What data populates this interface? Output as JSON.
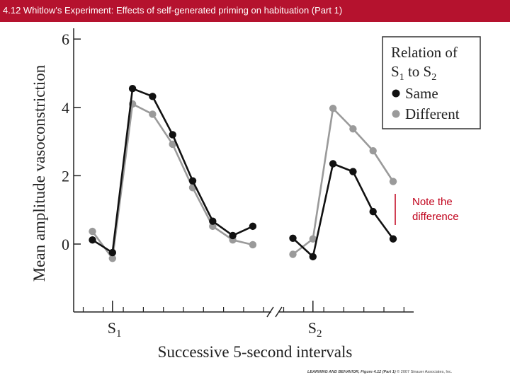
{
  "page": {
    "title": "4.12 Whitlow's Experiment: Effects of self-generated priming on habituation (Part 1)",
    "note_text": "Note the difference",
    "credit": {
      "book": "LEARNING AND BEHAVIOR, Figure 4.12 (Part 1)",
      "copyright": "© 2007 Sinauer Associates, Inc."
    }
  },
  "colors": {
    "title_bg": "#b5122e",
    "title_text": "#ffffff",
    "same": "#111111",
    "different": "#9a9a9a",
    "note": "#c0001a"
  },
  "chart_data": {
    "type": "line",
    "title": "",
    "xlabel": "Successive 5-second intervals",
    "ylabel": "Mean amplitude vasoconstriction",
    "ylim": [
      -2,
      6
    ],
    "yticks": [
      0,
      2,
      4,
      6
    ],
    "x_markers": [
      {
        "label": "S",
        "subscript": "1",
        "x": 2
      },
      {
        "label": "S",
        "subscript": "2",
        "x": 12
      }
    ],
    "axis_break_between": [
      9,
      11
    ],
    "legend": {
      "title_line1": "Relation of",
      "title_line2_a": "S",
      "title_line2_a_sub": "1",
      "title_line2_b": " to S",
      "title_line2_b_sub": "2",
      "position": "top-right"
    },
    "series": [
      {
        "name": "Same",
        "color": "#111111",
        "segments": [
          {
            "x": [
              1,
              2,
              3,
              4,
              5,
              6,
              7,
              8,
              9
            ],
            "values": [
              0.12,
              -0.25,
              4.55,
              4.32,
              3.2,
              1.85,
              0.67,
              0.25,
              0.52
            ]
          },
          {
            "x": [
              11,
              12,
              13,
              14,
              15,
              16
            ],
            "values": [
              0.17,
              -0.37,
              2.35,
              2.12,
              0.95,
              0.15
            ]
          }
        ]
      },
      {
        "name": "Different",
        "color": "#9a9a9a",
        "segments": [
          {
            "x": [
              1,
              2,
              3,
              4,
              5,
              6,
              7,
              8,
              9
            ],
            "values": [
              0.37,
              -0.42,
              4.1,
              3.8,
              2.92,
              1.65,
              0.52,
              0.12,
              -0.02
            ]
          },
          {
            "x": [
              11,
              12,
              13,
              14,
              15,
              16
            ],
            "values": [
              -0.3,
              0.15,
              3.97,
              3.37,
              2.73,
              1.83
            ]
          }
        ]
      }
    ]
  }
}
